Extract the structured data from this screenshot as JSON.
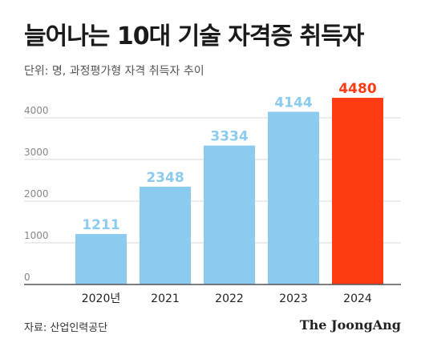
{
  "title": "늘어나는 10대 기술 자격증 취득자",
  "subtitle": "단위: 명, 과정평가형 자격 취득자 추이",
  "source": "자료: 산업인력공단",
  "brand": "The JoongAng",
  "colors": {
    "bar": "#8ccbf0",
    "highlight": "#ff3b13",
    "label": "#8ccbf0",
    "highlight_label": "#ff3b13",
    "grid": "#d9d9d9",
    "tick": "#888888",
    "axis": "#555555"
  },
  "chart_data": {
    "type": "bar",
    "categories": [
      "2020년",
      "2021",
      "2022",
      "2023",
      "2024"
    ],
    "values": [
      1211,
      2348,
      3334,
      4144,
      4480
    ],
    "value_labels": [
      "1211",
      "2348",
      "3334",
      "4144",
      "4480"
    ],
    "highlight_index": 4,
    "ylim": [
      0,
      4000
    ],
    "yticks": [
      0,
      1000,
      2000,
      3000,
      4000
    ],
    "ytick_labels": [
      "0",
      "1000",
      "2000",
      "3000",
      "4000"
    ],
    "xlabel": "",
    "ylabel": "",
    "grid": true
  }
}
